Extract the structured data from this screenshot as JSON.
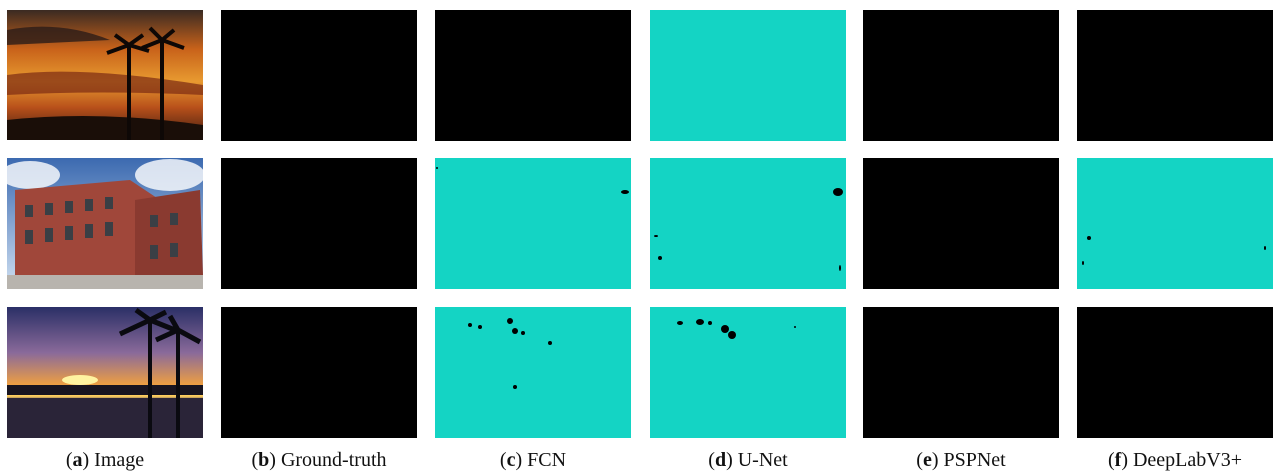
{
  "figure": {
    "captions": [
      [
        "(",
        "a",
        ") Image"
      ],
      [
        "(",
        "b",
        ") Ground-truth"
      ],
      [
        "(",
        "c",
        ") FCN"
      ],
      [
        "(",
        "d",
        ") U-Net"
      ],
      [
        "(",
        "e",
        ") PSPNet"
      ],
      [
        "(",
        "f",
        ") DeepLabV3+"
      ]
    ]
  }
}
